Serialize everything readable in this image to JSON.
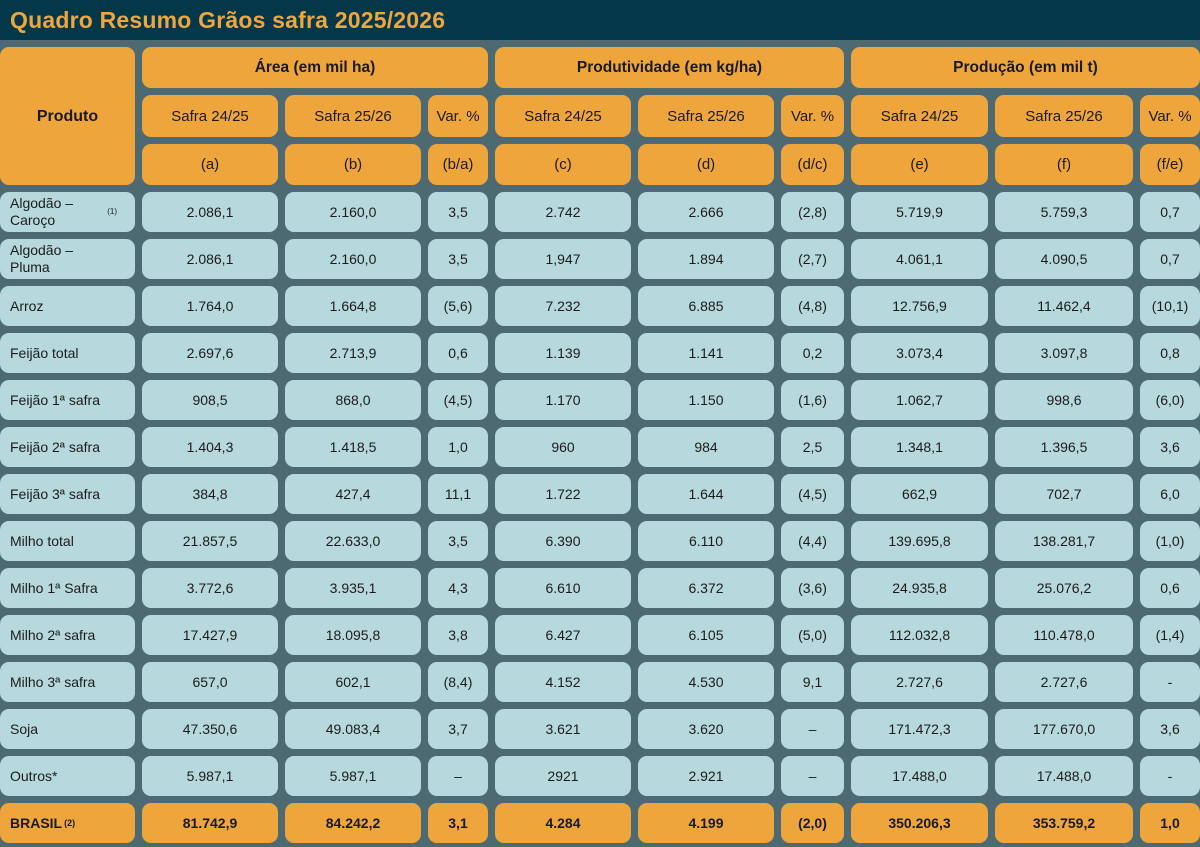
{
  "title": "Quadro Resumo Grãos safra 2025/2026",
  "colors": {
    "background_slate": "#4d6a72",
    "header_orange": "#eea63c",
    "cell_blue": "#b7d9dd",
    "title_bar": "#03374a",
    "title_text": "#f0a63e"
  },
  "table": {
    "product_header": "Produto",
    "groups": [
      "Área (em mil ha)",
      "Produtividade (em kg/ha)",
      "Produção (em mil t)"
    ],
    "safra_headers": [
      "Safra 24/25",
      "Safra 25/26",
      "Var. %",
      "Safra 24/25",
      "Safra 25/26",
      "Var. %",
      "Safra 24/25",
      "Safra 25/26",
      "Var. %"
    ],
    "letter_headers": [
      "(a)",
      "(b)",
      "(b/a)",
      "(c)",
      "(d)",
      "(d/c)",
      "(e)",
      "(f)",
      "(f/e)"
    ],
    "rows": [
      {
        "product": "Algodão – Caroço",
        "sup": "(1)",
        "values": [
          "2.086,1",
          "2.160,0",
          "3,5",
          "2.742",
          "2.666",
          "(2,8)",
          "5.719,9",
          "5.759,3",
          "0,7"
        ]
      },
      {
        "product": "Algodão – Pluma",
        "values": [
          "2.086,1",
          "2.160,0",
          "3,5",
          "1,947",
          "1.894",
          "(2,7)",
          "4.061,1",
          "4.090,5",
          "0,7"
        ]
      },
      {
        "product": "Arroz",
        "values": [
          "1.764,0",
          "1.664,8",
          "(5,6)",
          "7.232",
          "6.885",
          "(4,8)",
          "12.756,9",
          "11.462,4",
          "(10,1)"
        ]
      },
      {
        "product": "Feijão total",
        "values": [
          "2.697,6",
          "2.713,9",
          "0,6",
          "1.139",
          "1.141",
          "0,2",
          "3.073,4",
          "3.097,8",
          "0,8"
        ]
      },
      {
        "product": "Feijão 1ª safra",
        "values": [
          "908,5",
          "868,0",
          "(4,5)",
          "1.170",
          "1.150",
          "(1,6)",
          "1.062,7",
          "998,6",
          "(6,0)"
        ]
      },
      {
        "product": "Feijão 2ª safra",
        "values": [
          "1.404,3",
          "1.418,5",
          "1,0",
          "960",
          "984",
          "2,5",
          "1.348,1",
          "1.396,5",
          "3,6"
        ]
      },
      {
        "product": "Feijão 3ª safra",
        "values": [
          "384,8",
          "427,4",
          "11,1",
          "1.722",
          "1.644",
          "(4,5)",
          "662,9",
          "702,7",
          "6,0"
        ]
      },
      {
        "product": "Milho total",
        "values": [
          "21.857,5",
          "22.633,0",
          "3,5",
          "6.390",
          "6.110",
          "(4,4)",
          "139.695,8",
          "138.281,7",
          "(1,0)"
        ]
      },
      {
        "product": "Milho 1ª Safra",
        "values": [
          "3.772,6",
          "3.935,1",
          "4,3",
          "6.610",
          "6.372",
          "(3,6)",
          "24.935,8",
          "25.076,2",
          "0,6"
        ]
      },
      {
        "product": "Milho 2ª safra",
        "values": [
          "17.427,9",
          "18.095,8",
          "3,8",
          "6.427",
          "6.105",
          "(5,0)",
          "112.032,8",
          "110.478,0",
          "(1,4)"
        ]
      },
      {
        "product": "Milho 3ª safra",
        "values": [
          "657,0",
          "602,1",
          "(8,4)",
          "4.152",
          "4.530",
          "9,1",
          "2.727,6",
          "2.727,6",
          "-"
        ]
      },
      {
        "product": "Soja",
        "values": [
          "47.350,6",
          "49.083,4",
          "3,7",
          "3.621",
          "3.620",
          "–",
          "171.472,3",
          "177.670,0",
          "3,6"
        ]
      },
      {
        "product": "Outros*",
        "values": [
          "5.987,1",
          "5.987,1",
          "–",
          "2921",
          "2.921",
          "–",
          "17.488,0",
          "17.488,0",
          "-"
        ]
      },
      {
        "product": "BRASIL",
        "sup": "(2)",
        "is_total": true,
        "values": [
          "81.742,9",
          "84.242,2",
          "3,1",
          "4.284",
          "4.199",
          "(2,0)",
          "350.206,3",
          "353.759,2",
          "1,0"
        ]
      }
    ]
  }
}
